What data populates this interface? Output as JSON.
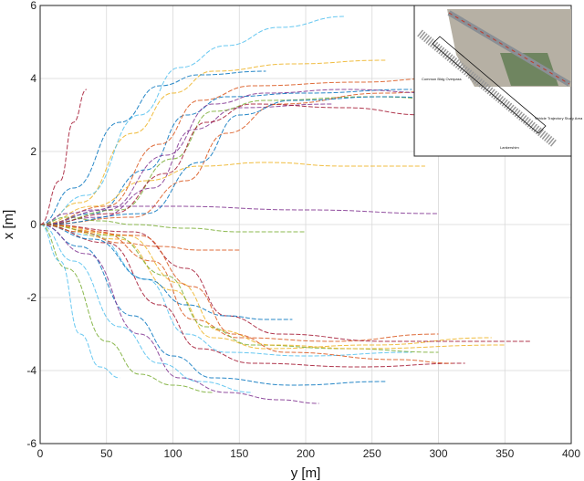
{
  "chart_data": {
    "type": "line",
    "title": "",
    "xlabel": "y [m]",
    "ylabel": "x [m]",
    "xlim": [
      0,
      400
    ],
    "ylim": [
      -6,
      6
    ],
    "xticks": [
      0,
      50,
      100,
      150,
      200,
      250,
      300,
      350,
      400
    ],
    "yticks": [
      -6,
      -4,
      -2,
      0,
      2,
      4,
      6
    ],
    "xtick_labels": [
      "0",
      "50",
      "100",
      "150",
      "200",
      "250",
      "300",
      "350",
      "400"
    ],
    "ytick_labels": [
      "-6",
      "-4",
      "-2",
      "0",
      "2",
      "4",
      "6"
    ],
    "grid": true,
    "legend": "none",
    "series_style": "dashed",
    "series": [
      {
        "x": [
          0,
          40,
          80,
          110,
          140,
          200,
          280
        ],
        "y": [
          0,
          0.3,
          1.5,
          3.0,
          3.5,
          3.6,
          3.7
        ]
      },
      {
        "x": [
          0,
          50,
          90,
          120,
          160,
          240,
          300
        ],
        "y": [
          0,
          0.5,
          2.2,
          3.4,
          3.8,
          3.9,
          4.0
        ]
      },
      {
        "x": [
          0,
          30,
          70,
          100,
          130,
          190,
          260
        ],
        "y": [
          0,
          0.6,
          2.5,
          3.6,
          4.2,
          4.4,
          4.5
        ]
      },
      {
        "x": [
          0,
          45,
          85,
          115,
          150,
          220
        ],
        "y": [
          0,
          0.2,
          1.0,
          2.6,
          3.2,
          3.3
        ]
      },
      {
        "x": [
          0,
          60,
          100,
          130,
          170,
          250,
          320
        ],
        "y": [
          0,
          0.4,
          1.8,
          3.1,
          3.4,
          3.5,
          3.4
        ]
      },
      {
        "x": [
          0,
          35,
          75,
          105,
          140,
          180,
          230
        ],
        "y": [
          0,
          0.8,
          3.0,
          4.3,
          4.9,
          5.4,
          5.7
        ]
      },
      {
        "x": [
          0,
          55,
          95,
          125,
          160,
          230,
          290
        ],
        "y": [
          0,
          0.3,
          1.4,
          2.8,
          3.3,
          3.2,
          3.0
        ]
      },
      {
        "x": [
          0,
          25,
          60,
          90,
          120,
          170
        ],
        "y": [
          0,
          1.0,
          2.8,
          3.8,
          4.1,
          4.2
        ]
      },
      {
        "x": [
          0,
          70,
          110,
          140,
          180,
          260,
          330
        ],
        "y": [
          0,
          0.2,
          1.2,
          2.5,
          3.3,
          3.6,
          3.8
        ]
      },
      {
        "x": [
          0,
          40,
          80,
          120,
          170,
          230,
          290
        ],
        "y": [
          0,
          0.5,
          1.2,
          1.6,
          1.7,
          1.6,
          1.6
        ]
      },
      {
        "x": [
          0,
          20,
          40,
          60,
          100,
          200,
          300
        ],
        "y": [
          0,
          0.3,
          0.4,
          0.5,
          0.5,
          0.4,
          0.3
        ]
      },
      {
        "x": [
          0,
          20,
          45,
          70,
          110,
          150,
          200
        ],
        "y": [
          0,
          0.2,
          0.1,
          0.0,
          -0.1,
          -0.2,
          -0.2
        ]
      },
      {
        "x": [
          0,
          40,
          80,
          110,
          140,
          200,
          280
        ],
        "y": [
          0,
          -0.3,
          -1.5,
          -3.0,
          -3.5,
          -3.6,
          -3.5
        ]
      },
      {
        "x": [
          0,
          50,
          90,
          120,
          160,
          240,
          320
        ],
        "y": [
          0,
          -0.5,
          -2.2,
          -3.4,
          -3.8,
          -3.9,
          -3.8
        ]
      },
      {
        "x": [
          0,
          30,
          70,
          100,
          130,
          190,
          260
        ],
        "y": [
          0,
          -0.6,
          -2.5,
          -3.6,
          -4.2,
          -4.4,
          -4.3
        ]
      },
      {
        "x": [
          0,
          45,
          85,
          115,
          150,
          220,
          300
        ],
        "y": [
          0,
          -0.2,
          -1.0,
          -2.6,
          -3.1,
          -3.2,
          -3.0
        ]
      },
      {
        "x": [
          0,
          60,
          100,
          130,
          170,
          250,
          340
        ],
        "y": [
          0,
          -0.4,
          -1.8,
          -3.1,
          -3.4,
          -3.3,
          -3.1
        ]
      },
      {
        "x": [
          0,
          35,
          75,
          105,
          140,
          180,
          210
        ],
        "y": [
          0,
          -0.8,
          -3.0,
          -4.2,
          -4.6,
          -4.8,
          -4.9
        ]
      },
      {
        "x": [
          0,
          55,
          95,
          125,
          160,
          230,
          300
        ],
        "y": [
          0,
          -0.3,
          -1.4,
          -2.8,
          -3.3,
          -3.4,
          -3.5
        ]
      },
      {
        "x": [
          0,
          25,
          60,
          90,
          120,
          160
        ],
        "y": [
          0,
          -1.0,
          -2.8,
          -3.8,
          -4.3,
          -4.6
        ]
      },
      {
        "x": [
          0,
          70,
          110,
          140,
          180,
          260,
          370
        ],
        "y": [
          0,
          -0.2,
          -1.2,
          -2.5,
          -3.0,
          -3.2,
          -3.2
        ]
      },
      {
        "x": [
          0,
          40,
          80,
          110,
          140,
          170,
          190
        ],
        "y": [
          0,
          -0.4,
          -1.5,
          -2.2,
          -2.5,
          -2.6,
          -2.6
        ]
      },
      {
        "x": [
          0,
          30,
          60,
          90,
          120,
          150
        ],
        "y": [
          0,
          -0.2,
          -0.5,
          -0.6,
          -0.7,
          -0.7
        ]
      },
      {
        "x": [
          0,
          65,
          105,
          135,
          175,
          240,
          350
        ],
        "y": [
          0,
          -0.3,
          -1.6,
          -2.9,
          -3.3,
          -3.4,
          -3.3
        ]
      },
      {
        "x": [
          0,
          50,
          95,
          130,
          170,
          230,
          300
        ],
        "y": [
          0,
          0.4,
          1.9,
          3.3,
          3.6,
          3.7,
          3.6
        ]
      },
      {
        "x": [
          0,
          20,
          50,
          75,
          100,
          130
        ],
        "y": [
          0,
          -1.2,
          -3.2,
          -4.1,
          -4.4,
          -4.6
        ]
      },
      {
        "x": [
          0,
          15,
          30,
          45,
          60
        ],
        "y": [
          0,
          -1.0,
          -3.0,
          -3.9,
          -4.2
        ]
      },
      {
        "x": [
          0,
          15,
          25,
          35
        ],
        "y": [
          0,
          1.2,
          2.8,
          3.7
        ]
      },
      {
        "x": [
          0,
          80,
          120,
          150,
          190,
          260,
          330
        ],
        "y": [
          0,
          0.3,
          1.7,
          3.0,
          3.4,
          3.5,
          3.4
        ]
      },
      {
        "x": [
          0,
          75,
          115,
          145,
          185,
          270,
          310
        ],
        "y": [
          0,
          -0.3,
          -1.7,
          -3.0,
          -3.5,
          -3.7,
          -3.8
        ]
      }
    ]
  },
  "inset": {
    "labels": [
      "Vehicle Trajectory Study Area",
      "Common Bldg Overpass",
      "Lankershim"
    ],
    "colors": {
      "road": "#9aa0a6",
      "trees": "#5e7a4f",
      "ground": "#b6b0a4"
    }
  },
  "colors": {
    "palette": [
      "#0072BD",
      "#D95319",
      "#EDB120",
      "#7E2F8E",
      "#77AC30",
      "#4DBEEE",
      "#A2142F"
    ]
  }
}
